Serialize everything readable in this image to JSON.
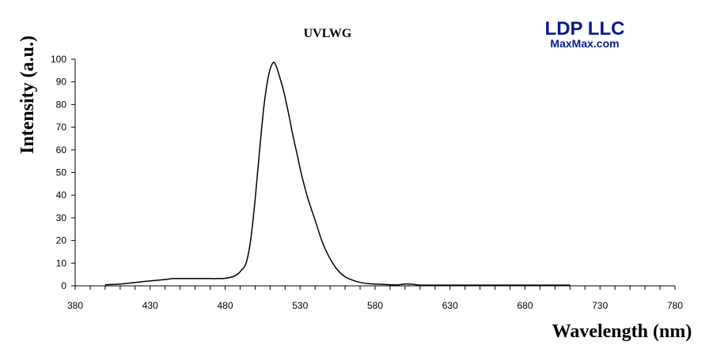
{
  "logo": {
    "company": "LDP LLC",
    "website": "MaxMax.com",
    "color": "#0a1a8c"
  },
  "chart_data": {
    "type": "line",
    "title": "UVLWG",
    "xlabel": "Wavelength (nm)",
    "ylabel": "Intensity (a.u.)",
    "xlim": [
      380,
      780
    ],
    "ylim": [
      0,
      100
    ],
    "xticks": [
      380,
      430,
      480,
      530,
      580,
      630,
      680,
      730,
      780
    ],
    "yticks": [
      0,
      10,
      20,
      30,
      40,
      50,
      60,
      70,
      80,
      90,
      100
    ],
    "grid": false,
    "line_color": "#000000",
    "series": [
      {
        "x": [
          400,
          410,
          420,
          430,
          440,
          445,
          450,
          460,
          470,
          475,
          480,
          485,
          488,
          491,
          494,
          497,
          500,
          503,
          506,
          509,
          512,
          514,
          516,
          519,
          522,
          525,
          528,
          531,
          535,
          540,
          545,
          550,
          555,
          560,
          565,
          570,
          575,
          580,
          590,
          595,
          600,
          605,
          610,
          620,
          640,
          660,
          680,
          700,
          710
        ],
        "y": [
          0.5,
          0.8,
          1.5,
          2.2,
          2.8,
          3.2,
          3.2,
          3.2,
          3.2,
          3.2,
          3.3,
          4,
          5,
          7,
          10,
          20,
          38,
          60,
          80,
          93,
          98.5,
          97,
          93,
          86,
          77,
          67,
          58,
          49,
          39,
          29,
          19,
          12,
          7,
          4,
          2.5,
          1.5,
          1,
          0.8,
          0.5,
          0.4,
          0.8,
          0.7,
          0.3,
          0.3,
          0.3,
          0.3,
          0.3,
          0.3,
          0.3
        ]
      }
    ]
  }
}
